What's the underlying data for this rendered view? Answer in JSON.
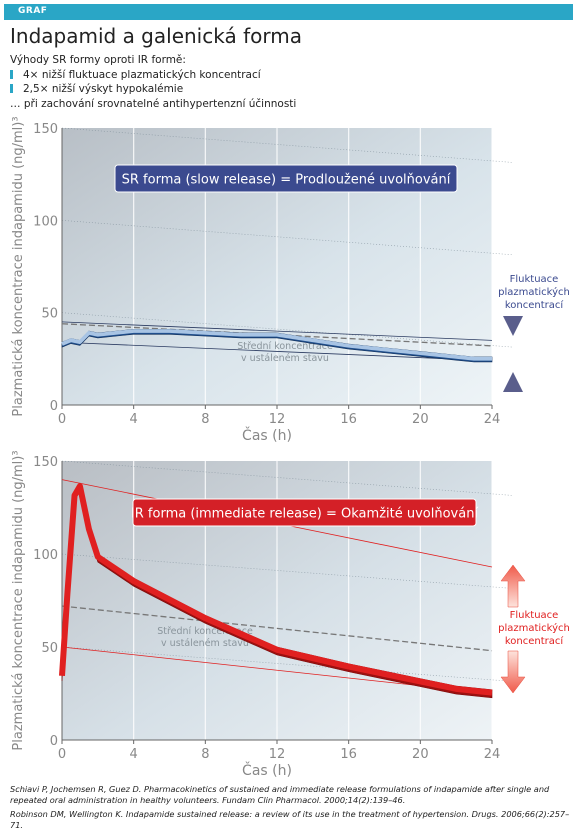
{
  "header": {
    "tag": "GRAF",
    "title": "Indapamid a galenická forma"
  },
  "intro": {
    "lead": "Výhody SR formy oproti IR formě:",
    "bullets": [
      "4× nižší fluktuace plazmatických koncentrací",
      "2,5× nižší výskyt hypokalémie"
    ],
    "tail": "… při zachování srovnatelné antihypertenzní účinnosti"
  },
  "colors": {
    "accent": "#2aa6c6",
    "sr": "#1f4e8c",
    "sr_light": "#a8c4e4",
    "ir": "#e02020",
    "ir_dark": "#9e1010",
    "sr_box": "#3b4a8f",
    "ir_box": "#d42027"
  },
  "chart_data": [
    {
      "type": "line",
      "id": "sr",
      "banner": "SR forma (slow release) = Prodloužené uvolňování",
      "xlabel": "Čas (h)",
      "ylabel": "Plazmatická koncentrace indapamidu (ng/ml)³",
      "xlim": [
        0,
        24
      ],
      "ylim": [
        0,
        150
      ],
      "x_ticks": [
        0,
        4,
        8,
        12,
        16,
        20,
        24
      ],
      "y_ticks": [
        0,
        50,
        100,
        150
      ],
      "grid": true,
      "x": [
        0,
        0.5,
        1,
        1.5,
        2,
        3,
        4,
        6,
        8,
        10,
        12,
        14,
        16,
        18,
        20,
        22,
        23,
        24
      ],
      "values": [
        34,
        36,
        35,
        40,
        39,
        40,
        41,
        41,
        40,
        39,
        39,
        36,
        33,
        31,
        29,
        27,
        26,
        26
      ],
      "steady_state": {
        "label_line1": "Střední koncentrace",
        "label_line2": "v ustáleném stavu",
        "y_start": 44,
        "y_end": 32
      },
      "envelope": {
        "max_start": 45,
        "max_end": 35,
        "min_start": 34,
        "min_end": 24
      },
      "fluctuation_label": [
        "Fluktuace",
        "plazmatických",
        "koncentrací"
      ]
    },
    {
      "type": "line",
      "id": "ir",
      "banner": "IR forma (immediate release) = Okamžité uvolňování",
      "xlabel": "Čas (h)",
      "ylabel": "Plazmatická koncentrace indapamidu (ng/ml)³",
      "xlim": [
        0,
        24
      ],
      "ylim": [
        0,
        150
      ],
      "x_ticks": [
        0,
        4,
        8,
        12,
        16,
        20,
        24
      ],
      "y_ticks": [
        0,
        50,
        100,
        150
      ],
      "grid": true,
      "x": [
        0,
        0.3,
        0.7,
        1,
        1.5,
        2,
        4,
        8,
        12,
        16,
        20,
        22,
        24
      ],
      "values": [
        36,
        80,
        133,
        138,
        115,
        100,
        87,
        67,
        50,
        41,
        33,
        29,
        27
      ],
      "steady_state": {
        "label_line1": "Střední koncentrace",
        "label_line2": "v ustáleném stavu",
        "y_start": 72,
        "y_end": 48
      },
      "envelope": {
        "max_start": 140,
        "max_end": 93,
        "min_start": 50,
        "min_end": 25
      },
      "fluctuation_label": [
        "Fluktuace",
        "plazmatických",
        "koncentrací"
      ]
    }
  ],
  "references": [
    "Schiavi P, Jochemsen R, Guez D. Pharmacokinetics of sustained and immediate release formulations of indapamide after single and repeated oral administration in healthy volunteers. Fundam Clin Pharmacol. 2000;14(2):139–46.",
    "Robinson DM, Wellington K. Indapamide sustained release: a review of its use in the treatment of hypertension. Drugs. 2006;66(2):257–71."
  ]
}
